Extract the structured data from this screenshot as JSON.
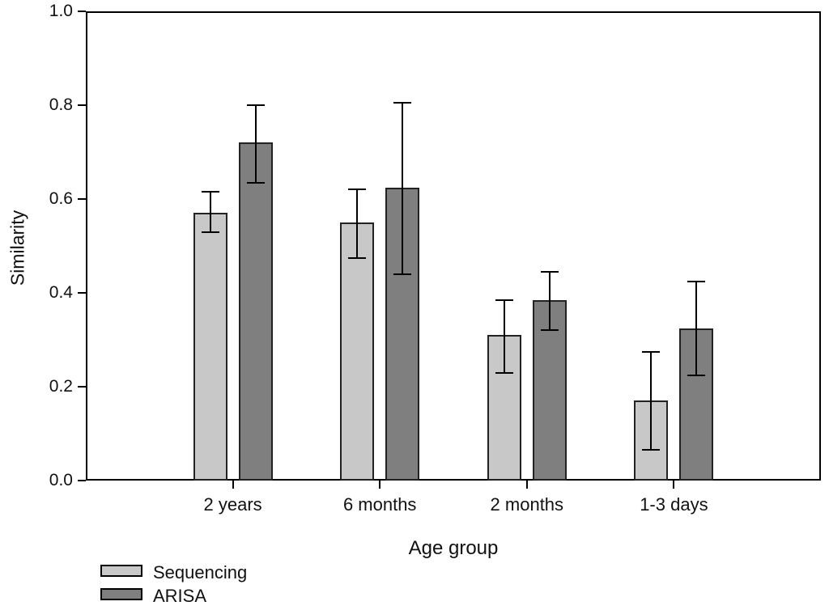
{
  "chart_data": {
    "type": "bar",
    "title": "",
    "xlabel": "Age group",
    "ylabel": "Similarity",
    "categories": [
      "2 years",
      "6 months",
      "2 months",
      "1-3 days"
    ],
    "series": [
      {
        "name": "Sequencing",
        "color": "#c8c8c8",
        "values": [
          0.57,
          0.55,
          0.31,
          0.17
        ],
        "error_low": [
          0.53,
          0.475,
          0.23,
          0.065
        ],
        "error_high": [
          0.615,
          0.62,
          0.385,
          0.275
        ]
      },
      {
        "name": "ARISA",
        "color": "#7f7f7f",
        "values": [
          0.72,
          0.625,
          0.385,
          0.325
        ],
        "error_low": [
          0.635,
          0.44,
          0.32,
          0.225
        ],
        "error_high": [
          0.8,
          0.805,
          0.445,
          0.425
        ]
      }
    ],
    "ylim": [
      0.0,
      1.0
    ],
    "yticks": [
      "0.0",
      "0.2",
      "0.4",
      "0.6",
      "0.8",
      "1.0"
    ],
    "grid": false,
    "legend_position": "bottom-left",
    "bar_edge_color": "#222222",
    "error_bar_color": "#000000",
    "axis_color": "#000000",
    "background_color": "#ffffff"
  }
}
